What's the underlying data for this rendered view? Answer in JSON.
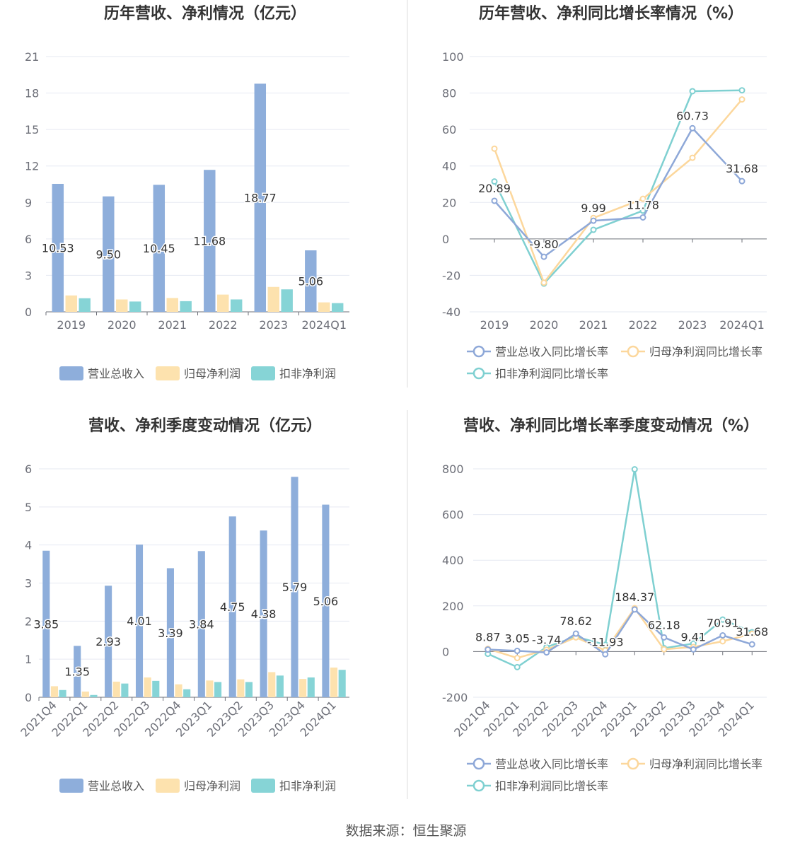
{
  "colors": {
    "revenue": "#8eaedb",
    "net_profit": "#fde2ae",
    "deducted_profit": "#86d4d6",
    "revenue_line": "#8ea8d8",
    "net_line": "#fcd79c",
    "deducted_line": "#7fd0d1",
    "grid": "#e6e9f2",
    "axis_text": "#6e7079",
    "title": "#333333",
    "divider": "#dcdcdc"
  },
  "source_text": "数据来源：恒生聚源",
  "chart_data": [
    {
      "id": "annual-bar",
      "type": "bar",
      "title": "历年营收、净利情况（亿元）",
      "categories": [
        "2019",
        "2020",
        "2021",
        "2022",
        "2023",
        "2024Q1"
      ],
      "ylim": [
        0,
        21
      ],
      "yticks": [
        0,
        3,
        6,
        9,
        12,
        15,
        18,
        21
      ],
      "series": [
        {
          "name": "营业总收入",
          "values": [
            10.53,
            9.5,
            10.45,
            11.68,
            18.77,
            5.06
          ]
        },
        {
          "name": "归母净利润",
          "values": [
            1.35,
            1.02,
            1.14,
            1.42,
            2.05,
            0.78
          ]
        },
        {
          "name": "扣非净利润",
          "values": [
            1.12,
            0.85,
            0.88,
            1.02,
            1.85,
            0.72
          ]
        }
      ],
      "labels": [
        "10.53",
        "9.50",
        "10.45",
        "11.68",
        "18.77",
        "5.06"
      ],
      "legend": [
        "营业总收入",
        "归母净利润",
        "扣非净利润"
      ]
    },
    {
      "id": "annual-line",
      "type": "line",
      "title": "历年营收、净利同比增长率情况（%）",
      "categories": [
        "2019",
        "2020",
        "2021",
        "2022",
        "2023",
        "2024Q1"
      ],
      "ylim": [
        -40,
        100
      ],
      "yticks": [
        -40,
        -20,
        0,
        20,
        40,
        60,
        80,
        100
      ],
      "series": [
        {
          "name": "营业总收入同比增长率",
          "values": [
            20.89,
            -9.8,
            9.99,
            11.78,
            60.73,
            31.68
          ]
        },
        {
          "name": "归母净利润同比增长率",
          "values": [
            49.5,
            -24.0,
            11.5,
            22.0,
            44.5,
            76.5
          ]
        },
        {
          "name": "扣非净利润同比增长率",
          "values": [
            31.5,
            -24.5,
            5.0,
            15.5,
            81.0,
            81.5
          ]
        }
      ],
      "labels": [
        "20.89",
        "-9.80",
        "9.99",
        "11.78",
        "60.73",
        "31.68"
      ],
      "legend": [
        "营业总收入同比增长率",
        "归母净利润同比增长率",
        "扣非净利润同比增长率"
      ]
    },
    {
      "id": "quarter-bar",
      "type": "bar",
      "title": "营收、净利季度变动情况（亿元）",
      "categories": [
        "2021Q4",
        "2022Q1",
        "2022Q2",
        "2022Q3",
        "2022Q4",
        "2023Q1",
        "2023Q2",
        "2023Q3",
        "2023Q4",
        "2024Q1"
      ],
      "ylim": [
        0,
        6
      ],
      "yticks": [
        0,
        1,
        2,
        3,
        4,
        5,
        6
      ],
      "series": [
        {
          "name": "营业总收入",
          "values": [
            3.85,
            1.35,
            2.93,
            4.01,
            3.39,
            3.84,
            4.75,
            4.38,
            5.79,
            5.06
          ]
        },
        {
          "name": "归母净利润",
          "values": [
            0.29,
            0.15,
            0.41,
            0.52,
            0.34,
            0.44,
            0.47,
            0.66,
            0.48,
            0.78
          ]
        },
        {
          "name": "扣非净利润",
          "values": [
            0.19,
            0.06,
            0.36,
            0.43,
            0.21,
            0.4,
            0.4,
            0.57,
            0.52,
            0.72
          ]
        }
      ],
      "labels": [
        "3.85",
        "1.35",
        "2.93",
        "4.01",
        "3.39",
        "3.84",
        "4.75",
        "4.38",
        "5.79",
        "5.06"
      ],
      "legend": [
        "营业总收入",
        "归母净利润",
        "扣非净利润"
      ]
    },
    {
      "id": "quarter-line",
      "type": "line",
      "title": "营收、净利同比增长率季度变动情况（%）",
      "categories": [
        "2021Q4",
        "2022Q1",
        "2022Q2",
        "2022Q3",
        "2022Q4",
        "2023Q1",
        "2023Q2",
        "2023Q3",
        "2023Q4",
        "2024Q1"
      ],
      "ylim": [
        -200,
        800
      ],
      "yticks": [
        -200,
        0,
        200,
        400,
        600,
        800
      ],
      "series": [
        {
          "name": "营业总收入同比增长率",
          "values": [
            8.87,
            3.05,
            -3.74,
            78.62,
            -11.93,
            184.37,
            62.18,
            9.41,
            70.91,
            31.68
          ]
        },
        {
          "name": "归母净利润同比增长率",
          "values": [
            12,
            -28,
            8,
            62,
            5,
            190,
            10,
            20,
            45,
            78
          ]
        },
        {
          "name": "扣非净利润同比增长率",
          "values": [
            -10,
            -68,
            20,
            65,
            30,
            798,
            15,
            35,
            140,
            85
          ]
        }
      ],
      "labels": [
        "8.87",
        "3.05",
        "-3.74",
        "78.62",
        "-11.93",
        "184.37",
        "62.18",
        "9.41",
        "70.91",
        "31.68"
      ],
      "legend": [
        "营业总收入同比增长率",
        "归母净利润同比增长率",
        "扣非净利润同比增长率"
      ]
    }
  ]
}
